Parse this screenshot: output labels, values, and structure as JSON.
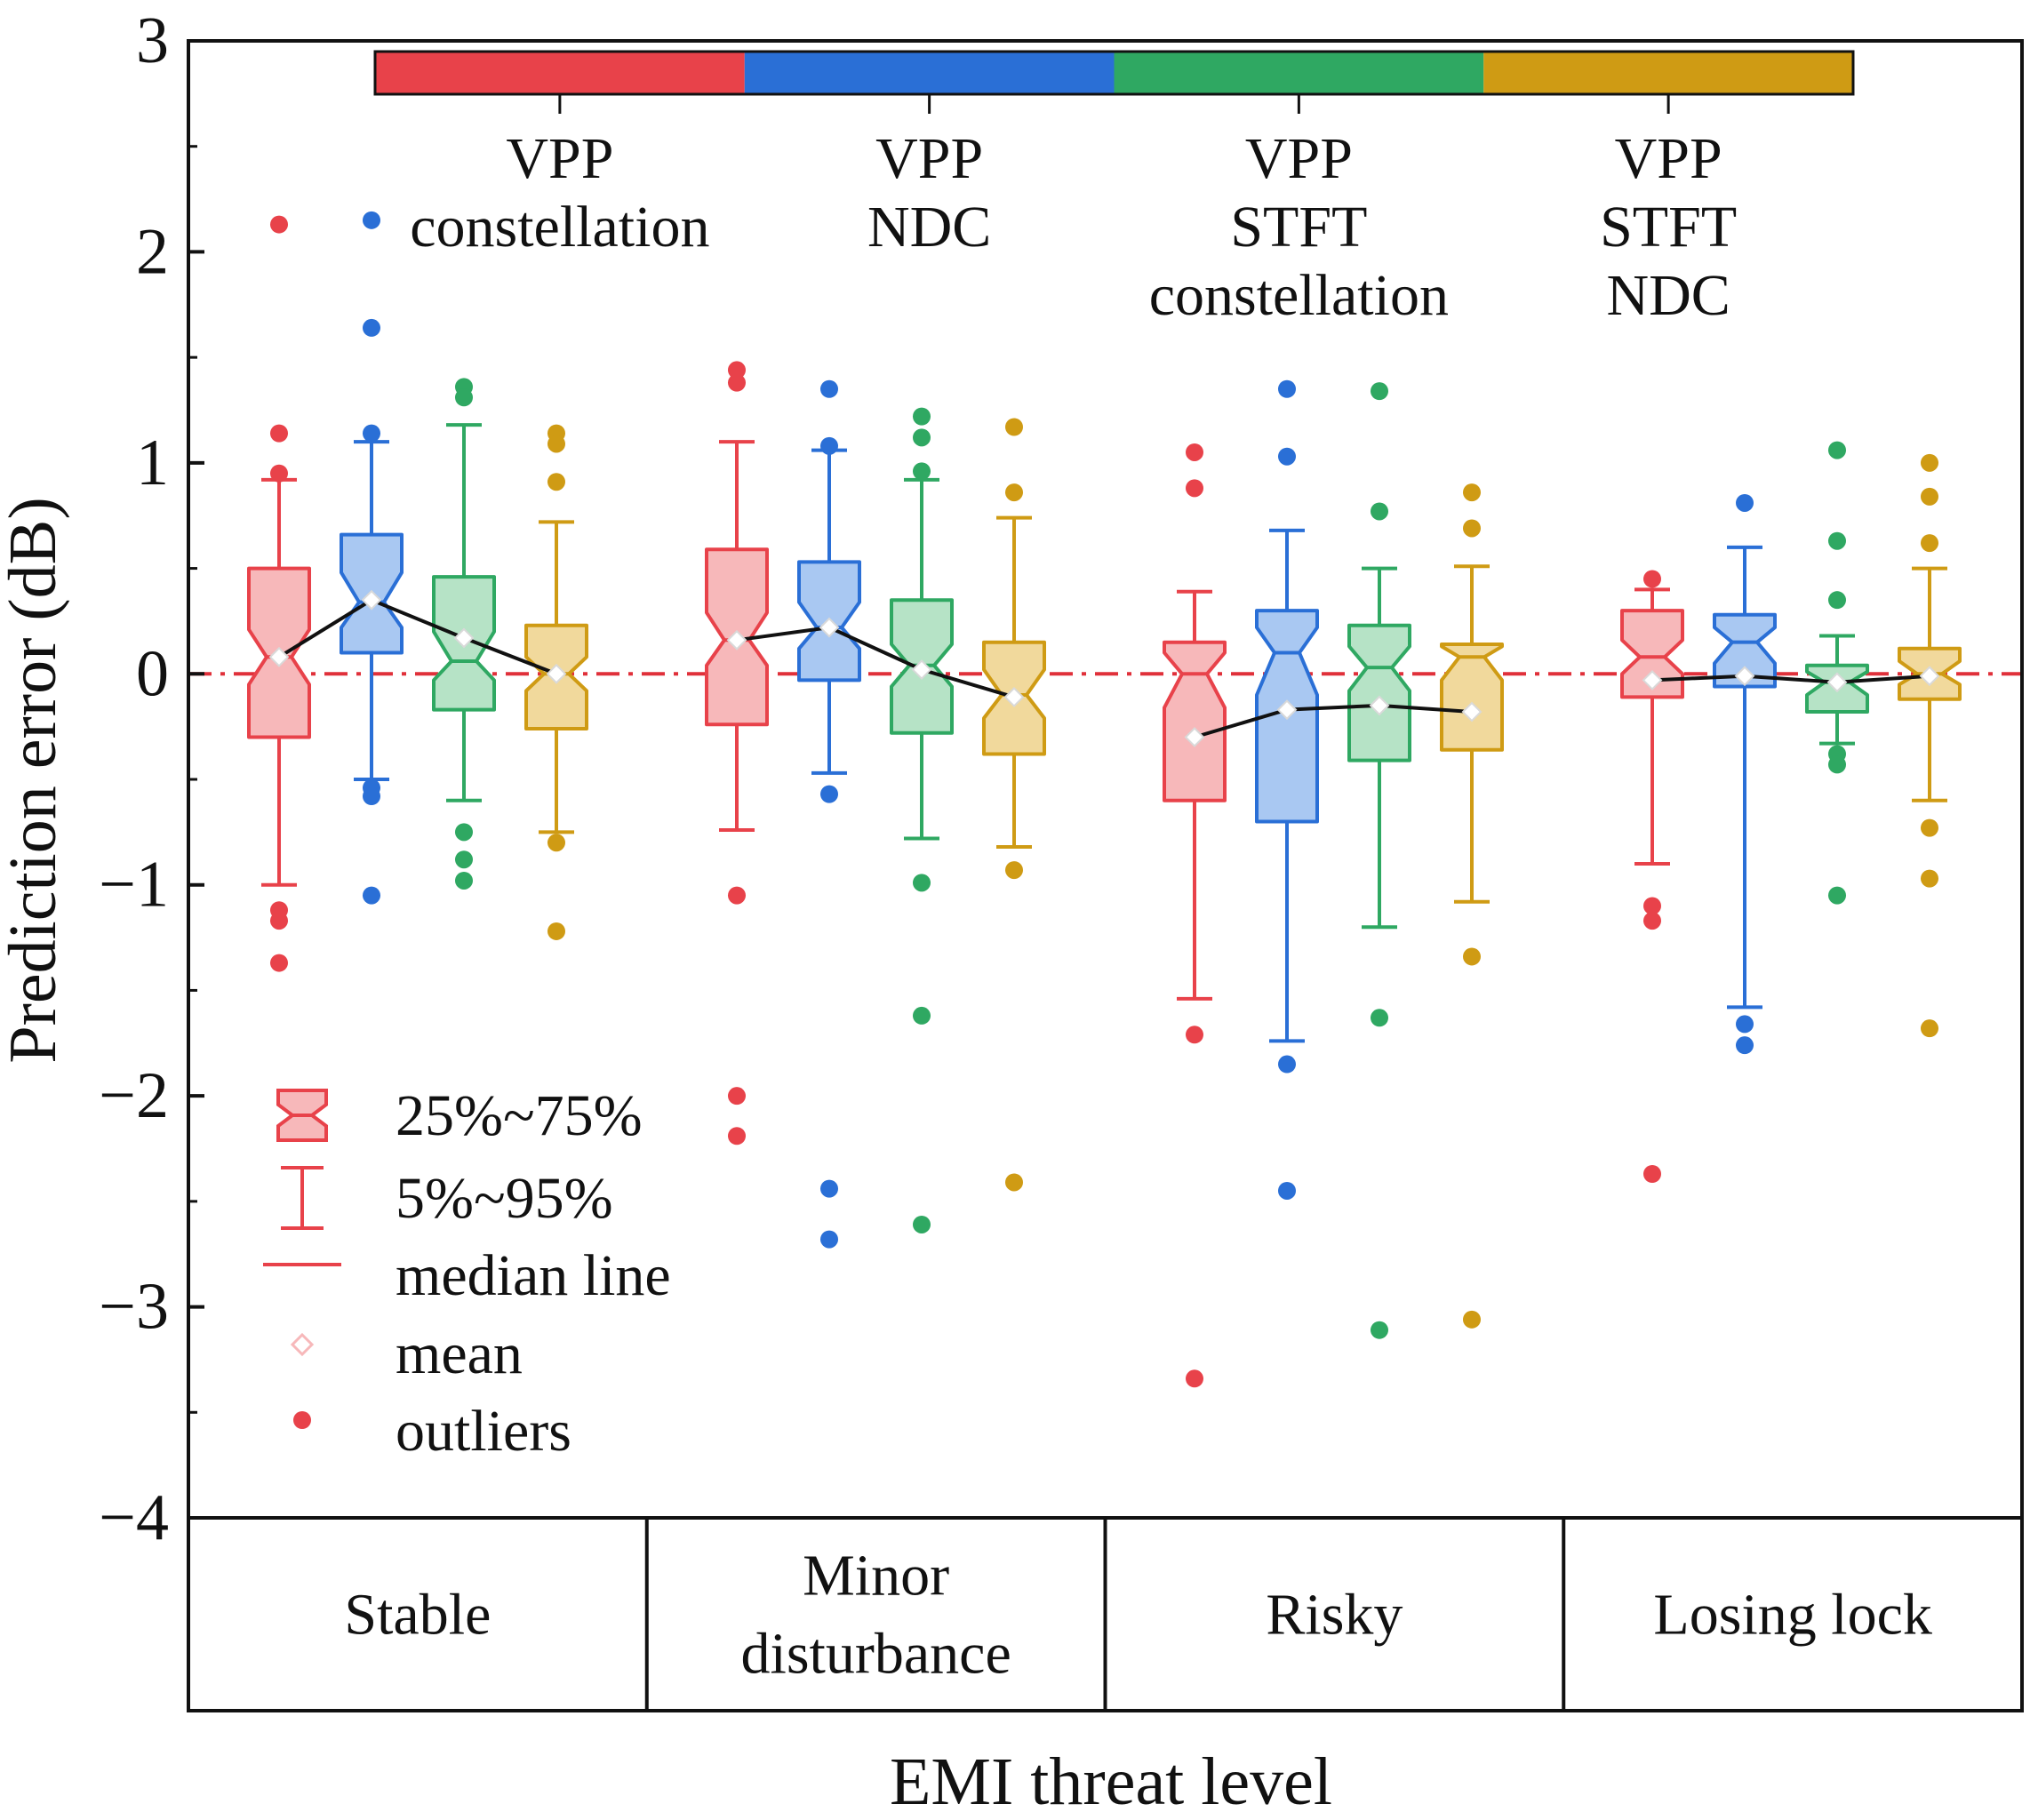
{
  "chart_data": {
    "type": "box",
    "title": "",
    "xlabel": "EMI threat level",
    "ylabel": "Prediction error (dB)",
    "ylim": [
      -4,
      3
    ],
    "yticks": [
      3,
      2,
      1,
      0,
      -1,
      -2,
      -3,
      -4
    ],
    "ytick_labels": [
      "3",
      "2",
      "1",
      "0",
      "−1",
      "−2",
      "−3",
      "−4"
    ],
    "reference_line": 0,
    "categories": [
      "Stable",
      "Minor disturbance",
      "Risky",
      "Losing lock"
    ],
    "category_lines": [
      [
        "Stable"
      ],
      [
        "Minor",
        "disturbance"
      ],
      [
        "Risky"
      ],
      [
        "Losing lock"
      ]
    ],
    "series": [
      {
        "name": "VPP constellation",
        "label_lines": [
          "VPP",
          "constellation"
        ],
        "color": "#e8424a",
        "fill": "#f7b8ba",
        "boxes": [
          {
            "q1": -0.3,
            "median": 0.08,
            "q3": 0.5,
            "notch_low": -0.05,
            "notch_high": 0.21,
            "p5": -1.0,
            "p95": 0.92,
            "mean": 0.08,
            "outliers": [
              1.14,
              0.95,
              -1.12,
              -1.17,
              -1.37,
              2.13
            ]
          },
          {
            "q1": -0.24,
            "median": 0.16,
            "q3": 0.59,
            "notch_low": 0.04,
            "notch_high": 0.29,
            "p5": -0.74,
            "p95": 1.1,
            "mean": 0.16,
            "outliers": [
              1.44,
              1.38,
              -1.05,
              -2.0,
              -2.19
            ]
          },
          {
            "q1": -0.6,
            "median": 0.0,
            "q3": 0.15,
            "notch_low": -0.16,
            "notch_high": 0.1,
            "p5": -1.54,
            "p95": 0.39,
            "mean": -0.3,
            "outliers": [
              1.05,
              0.88,
              -1.71,
              -3.34
            ]
          },
          {
            "q1": -0.11,
            "median": 0.08,
            "q3": 0.3,
            "notch_low": 0.0,
            "notch_high": 0.16,
            "p5": -0.9,
            "p95": 0.4,
            "mean": -0.03,
            "outliers": [
              0.45,
              -1.1,
              -1.17,
              -2.37
            ]
          }
        ]
      },
      {
        "name": "VPP NDC",
        "label_lines": [
          "VPP",
          "NDC"
        ],
        "color": "#2a6fd6",
        "fill": "#a9c8f2",
        "boxes": [
          {
            "q1": 0.1,
            "median": 0.34,
            "q3": 0.66,
            "notch_low": 0.22,
            "notch_high": 0.48,
            "p5": -0.5,
            "p95": 1.1,
            "mean": 0.35,
            "outliers": [
              1.14,
              1.64,
              -0.54,
              -0.58,
              -1.05,
              2.15
            ]
          },
          {
            "q1": -0.03,
            "median": 0.22,
            "q3": 0.53,
            "notch_low": 0.12,
            "notch_high": 0.34,
            "p5": -0.47,
            "p95": 1.06,
            "mean": 0.22,
            "outliers": [
              1.35,
              1.08,
              -0.57,
              -2.44,
              -2.68
            ]
          },
          {
            "q1": -0.7,
            "median": 0.1,
            "q3": 0.3,
            "notch_low": -0.1,
            "notch_high": 0.22,
            "p5": -1.74,
            "p95": 0.68,
            "mean": -0.17,
            "outliers": [
              1.35,
              1.03,
              -1.85,
              -2.45
            ]
          },
          {
            "q1": -0.06,
            "median": 0.15,
            "q3": 0.28,
            "notch_low": 0.05,
            "notch_high": 0.22,
            "p5": -1.58,
            "p95": 0.6,
            "mean": -0.01,
            "outliers": [
              0.81,
              -1.66,
              -1.76
            ]
          }
        ]
      },
      {
        "name": "VPP STFT constellation",
        "label_lines": [
          "VPP",
          "STFT",
          "constellation"
        ],
        "color": "#2fa862",
        "fill": "#b6e3c6",
        "boxes": [
          {
            "q1": -0.17,
            "median": 0.06,
            "q3": 0.46,
            "notch_low": -0.03,
            "notch_high": 0.2,
            "p5": -0.6,
            "p95": 1.18,
            "mean": 0.17,
            "outliers": [
              1.36,
              1.31,
              -0.75,
              -0.88,
              -0.98
            ]
          },
          {
            "q1": -0.28,
            "median": 0.04,
            "q3": 0.35,
            "notch_low": -0.06,
            "notch_high": 0.14,
            "p5": -0.78,
            "p95": 0.92,
            "mean": 0.02,
            "outliers": [
              1.22,
              1.12,
              0.96,
              -0.99,
              -1.62,
              -2.61
            ]
          },
          {
            "q1": -0.41,
            "median": 0.03,
            "q3": 0.23,
            "notch_low": -0.08,
            "notch_high": 0.13,
            "p5": -1.2,
            "p95": 0.5,
            "mean": -0.15,
            "outliers": [
              1.34,
              0.77,
              -1.63,
              -3.11
            ]
          },
          {
            "q1": -0.18,
            "median": -0.04,
            "q3": 0.04,
            "notch_low": -0.1,
            "notch_high": 0.01,
            "p5": -0.33,
            "p95": 0.18,
            "mean": -0.04,
            "outliers": [
              1.06,
              0.63,
              0.35,
              -0.38,
              -0.43,
              -1.05
            ]
          }
        ]
      },
      {
        "name": "VPP STFT NDC",
        "label_lines": [
          "VPP",
          "STFT",
          "NDC"
        ],
        "color": "#cf9b14",
        "fill": "#f1d99c",
        "boxes": [
          {
            "q1": -0.26,
            "median": 0.0,
            "q3": 0.23,
            "notch_low": -0.08,
            "notch_high": 0.08,
            "p5": -0.75,
            "p95": 0.72,
            "mean": 0.0,
            "outliers": [
              1.14,
              1.09,
              0.91,
              -0.8,
              -1.22
            ]
          },
          {
            "q1": -0.38,
            "median": -0.1,
            "q3": 0.15,
            "notch_low": -0.21,
            "notch_high": 0.02,
            "p5": -0.82,
            "p95": 0.74,
            "mean": -0.11,
            "outliers": [
              1.17,
              0.86,
              -0.93,
              -2.41
            ]
          },
          {
            "q1": -0.36,
            "median": 0.08,
            "q3": 0.14,
            "notch_low": -0.03,
            "notch_high": 0.13,
            "p5": -1.08,
            "p95": 0.51,
            "mean": -0.18,
            "outliers": [
              0.86,
              0.69,
              -1.34,
              -3.06
            ]
          },
          {
            "q1": -0.12,
            "median": 0.0,
            "q3": 0.12,
            "notch_low": -0.05,
            "notch_high": 0.06,
            "p5": -0.6,
            "p95": 0.5,
            "mean": -0.01,
            "outliers": [
              1.0,
              0.84,
              0.62,
              -0.73,
              -0.97,
              -1.68
            ]
          }
        ]
      }
    ],
    "legend": {
      "items": [
        "25%~75%",
        "5%~95%",
        "median line",
        "mean",
        "outliers"
      ],
      "color": "#e8424a",
      "fill": "#f7b8ba",
      "placement": "bottom-left"
    },
    "mean_line_color": "#111111",
    "reference_line_color": "#e0303a"
  }
}
